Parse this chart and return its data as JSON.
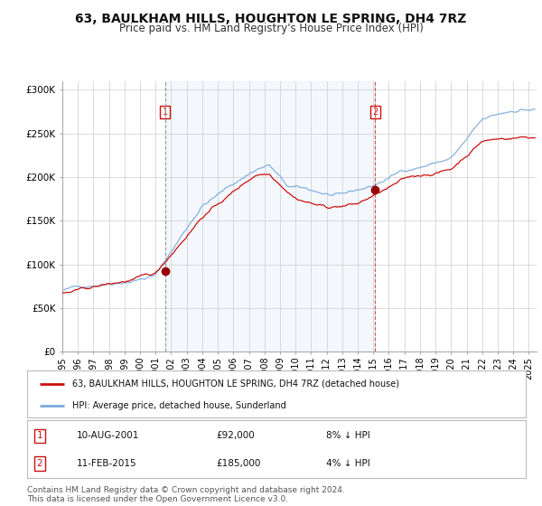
{
  "title": "63, BAULKHAM HILLS, HOUGHTON LE SPRING, DH4 7RZ",
  "subtitle": "Price paid vs. HM Land Registry's House Price Index (HPI)",
  "title_fontsize": 10,
  "subtitle_fontsize": 8.5,
  "bg_color": "#ffffff",
  "plot_bg_color": "#ffffff",
  "grid_color": "#cccccc",
  "shade_color": "#dce8f8",
  "x_start": 1995.0,
  "x_end": 2025.5,
  "y_min": 0,
  "y_max": 310000,
  "yticks": [
    0,
    50000,
    100000,
    150000,
    200000,
    250000,
    300000
  ],
  "ytick_labels": [
    "£0",
    "£50K",
    "£100K",
    "£150K",
    "£200K",
    "£250K",
    "£300K"
  ],
  "xticks": [
    1995,
    1996,
    1997,
    1998,
    1999,
    2000,
    2001,
    2002,
    2003,
    2004,
    2005,
    2006,
    2007,
    2008,
    2009,
    2010,
    2011,
    2012,
    2013,
    2014,
    2015,
    2016,
    2017,
    2018,
    2019,
    2020,
    2021,
    2022,
    2023,
    2024,
    2025
  ],
  "marker1_x": 2001.62,
  "marker1_y": 92000,
  "marker1_label": "1",
  "marker1_date": "10-AUG-2001",
  "marker1_price": "£92,000",
  "marker1_hpi": "8% ↓ HPI",
  "marker2_x": 2015.12,
  "marker2_y": 185000,
  "marker2_label": "2",
  "marker2_date": "11-FEB-2015",
  "marker2_price": "£185,000",
  "marker2_hpi": "4% ↓ HPI",
  "vline1_x": 2001.62,
  "vline2_x": 2015.12,
  "legend_line1": "63, BAULKHAM HILLS, HOUGHTON LE SPRING, DH4 7RZ (detached house)",
  "legend_line2": "HPI: Average price, detached house, Sunderland",
  "red_line_color": "#cc1111",
  "blue_line_color": "#7aaadd",
  "footer_text": "Contains HM Land Registry data © Crown copyright and database right 2024.\nThis data is licensed under the Open Government Licence v3.0.",
  "footer_fontsize": 6.5
}
